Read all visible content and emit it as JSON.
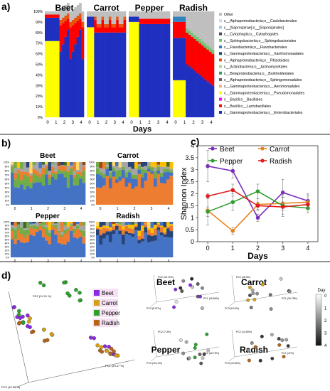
{
  "figure": {
    "panels": [
      "a)",
      "b)",
      "c)",
      "d)"
    ]
  },
  "panel_a": {
    "samples": [
      "Beet",
      "Carrot",
      "Pepper",
      "Radish"
    ],
    "y_ticks": [
      "100%",
      "90%",
      "80%",
      "70%",
      "60%",
      "50%",
      "40%",
      "30%",
      "20%",
      "10%",
      "0%"
    ],
    "x_ticks": [
      "0",
      "1",
      "2",
      "3",
      "4"
    ],
    "xlabel": "Days",
    "legend": [
      {
        "label": "Other",
        "color": "#bfbfbf"
      },
      {
        "label": "c__Alphaproteobacteria;o__Caulobacterales",
        "color": "#c6dbef"
      },
      {
        "label": "c__[Saprospirae];o__[Saprospirales]",
        "color": "#9ecae1"
      },
      {
        "label": "c__Cytophagia;o__Cytophagales",
        "color": "#4d4d4d"
      },
      {
        "label": "c__Sphingobacteriia;o__Sphingobacteriales",
        "color": "#74c476"
      },
      {
        "label": "c__Flavobacteriia;o__Flavobacteriales",
        "color": "#3182bd"
      },
      {
        "label": "c__Gammaproteobacteria;o__Xanthomonadales",
        "color": "#1f4e79"
      },
      {
        "label": "c__Alphaproteobacteria;o__Rhizobiales",
        "color": "#e6550d"
      },
      {
        "label": "c__Actinobacteria;o__Actinomycetales",
        "color": "#a1d99b"
      },
      {
        "label": "c__Betaproteobacteria;o__Burkholderiales",
        "color": "#31a354"
      },
      {
        "label": "c__Alphaproteobacteria;o__Sphingomonadales",
        "color": "#636363"
      },
      {
        "label": "c__Gammaproteobacteria;o__Aeromonadales",
        "color": "#fdae6b"
      },
      {
        "label": "c__Gammaproteobacteria;o__Pseudomonadales",
        "color": "#ffff00"
      },
      {
        "label": "c__Bacilli;o__Bacillales",
        "color": "#ff00ff"
      },
      {
        "label": "c__Bacilli;o__Lactobacillales",
        "color": "#ff0000"
      },
      {
        "label": "c__Gammaproteobacteria;o__Enterobacteriales",
        "color": "#1f2fbf"
      }
    ]
  },
  "panel_b": {
    "samples": [
      "Beet",
      "Carrot",
      "Pepper",
      "Radish"
    ],
    "y_ticks": [
      "100%",
      "90%",
      "80%",
      "70%",
      "60%",
      "50%",
      "40%",
      "30%",
      "20%",
      "10%",
      "0%"
    ],
    "x_ticks": [
      "0",
      "1",
      "2",
      "3",
      "4"
    ]
  },
  "chart_data": {
    "type": "line",
    "panel": "c)",
    "xlabel": "Days",
    "ylabel": "Shannon Index",
    "x": [
      0,
      1,
      2,
      3,
      4
    ],
    "xlim": [
      -0.4,
      4.4
    ],
    "ylim": [
      0,
      4
    ],
    "y_ticks": [
      "0",
      "0.5",
      "1",
      "1.5",
      "2",
      "2.5",
      "3",
      "3.5",
      "4"
    ],
    "legend_position": "top-right",
    "series": [
      {
        "name": "Beet",
        "color": "#7b2fbe",
        "values": [
          3.15,
          2.95,
          1.0,
          2.05,
          1.7
        ],
        "errors": [
          0.65,
          0.3,
          0.15,
          0.55,
          0.3
        ]
      },
      {
        "name": "Carrot",
        "color": "#e8821e",
        "values": [
          1.3,
          0.45,
          1.55,
          1.6,
          1.65
        ],
        "errors": [
          0.6,
          0.15,
          0.25,
          0.3,
          0.3
        ]
      },
      {
        "name": "Pepper",
        "color": "#2e9e2e",
        "values": [
          1.25,
          1.65,
          2.1,
          1.5,
          1.4
        ],
        "errors": [
          0.2,
          0.35,
          0.3,
          0.35,
          0.2
        ]
      },
      {
        "name": "Radish",
        "color": "#e01b1b",
        "values": [
          1.9,
          2.15,
          1.5,
          1.45,
          1.55
        ],
        "errors": [
          0.1,
          0.25,
          0.15,
          0.4,
          0.15
        ]
      }
    ]
  },
  "panel_d": {
    "legend": [
      {
        "label": "Beet",
        "color": "#8a2be2"
      },
      {
        "label": "Carrot",
        "color": "#d4a017"
      },
      {
        "label": "Pepper",
        "color": "#2ea02e"
      },
      {
        "label": "Radish",
        "color": "#b5651d"
      }
    ],
    "main_axes": {
      "pc1": "PC1 (20.47 %)",
      "pc2": "PC2 (11.31 %)",
      "pc3": "PC3 (10.38 %)"
    },
    "sub_titles": [
      "Beet",
      "Carrot",
      "Pepper",
      "Radish"
    ],
    "sub_axes": [
      {
        "pc1": "PC1 (26.86%)",
        "pc2": "PC2 (16.72%)",
        "pc3": "PC3 (8.97%)"
      },
      {
        "pc1": "PC1 (26.78%)",
        "pc2": "PC2 (26.9%)",
        "pc3": "PC3 (8.16%)"
      },
      {
        "pc1": "PC1 (40.75%)",
        "pc2": "PC2 (7.3%)",
        "pc3": "PC3 (10.14%)"
      },
      {
        "pc1": "PC1 (47%)",
        "pc2": "PC2 (14.59%)",
        "pc3": "PC3 (10.89%)"
      }
    ],
    "day_scale": {
      "title": "Day",
      "ticks": [
        "0",
        "1",
        "2",
        "3",
        "4"
      ]
    }
  }
}
